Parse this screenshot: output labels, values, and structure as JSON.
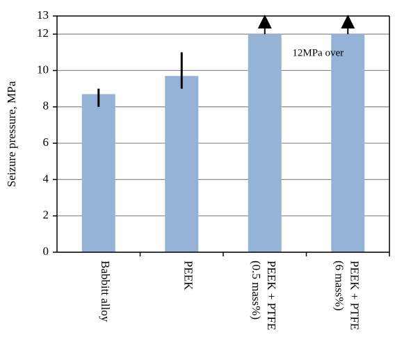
{
  "chart_data": {
    "type": "bar",
    "y_label": "Seizure pressure, MPa",
    "categories": [
      [
        "Babbitt alloy"
      ],
      [
        "PEEK"
      ],
      [
        "PEEK + PTFE",
        "(0.5 mass%)"
      ],
      [
        "PEEK + PTFE",
        "(6 mass%)"
      ]
    ],
    "values": [
      8.7,
      9.7,
      12,
      12
    ],
    "error_low": [
      8,
      9,
      null,
      null
    ],
    "error_high": [
      9,
      11,
      null,
      null
    ],
    "color": "#95b3d7",
    "annotation": "12MPa over",
    "ylim": [
      0,
      13
    ],
    "yticks": [
      0,
      2,
      4,
      6,
      8,
      10,
      12,
      13
    ],
    "grid": true
  }
}
